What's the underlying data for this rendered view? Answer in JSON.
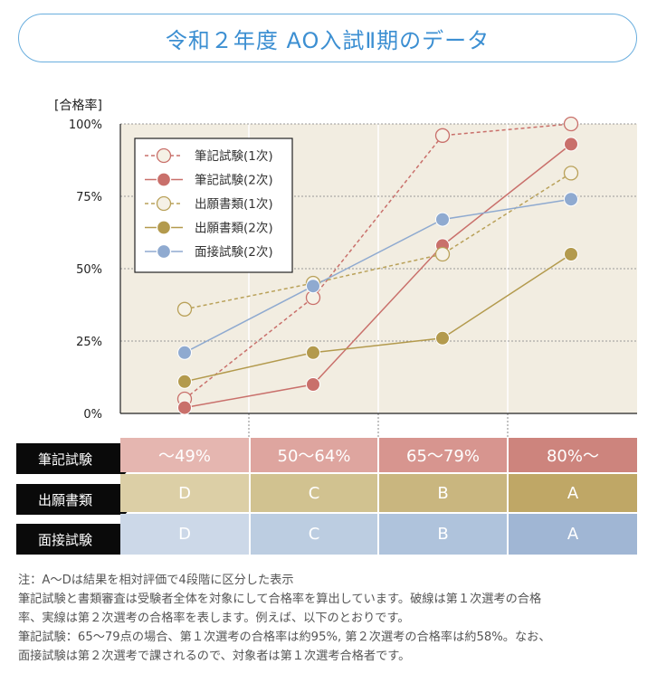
{
  "title": "令和２年度 AO入試Ⅱ期のデータ",
  "chart_data": {
    "type": "line",
    "ylabel": "[合格率]",
    "ylim": [
      0,
      100
    ],
    "yticks": [
      "0%",
      "25%",
      "50%",
      "75%",
      "100%"
    ],
    "ytick_values": [
      0,
      25,
      50,
      75,
      100
    ],
    "categories": [
      "1",
      "2",
      "3",
      "4"
    ],
    "grid": true,
    "legend_position": "top-left",
    "series": [
      {
        "name": "筆記試験(1次)",
        "color": "#c9706b",
        "dashed": true,
        "hollow": true,
        "values": [
          5,
          40,
          96,
          100
        ]
      },
      {
        "name": "筆記試験(2次)",
        "color": "#c9706b",
        "dashed": false,
        "hollow": false,
        "values": [
          2,
          10,
          58,
          93
        ]
      },
      {
        "name": "出願書類(1次)",
        "color": "#b9a159",
        "dashed": true,
        "hollow": true,
        "values": [
          36,
          45,
          55,
          83
        ]
      },
      {
        "name": "出願書類(2次)",
        "color": "#b39a4d",
        "dashed": false,
        "hollow": false,
        "values": [
          11,
          21,
          26,
          55
        ]
      },
      {
        "name": "面接試験(2次)",
        "color": "#8faad0",
        "dashed": false,
        "hollow": false,
        "values": [
          21,
          44,
          67,
          74
        ]
      }
    ]
  },
  "table": {
    "rows": [
      {
        "label": "筆記試験",
        "cells": [
          "～49%",
          "50～64%",
          "65～79%",
          "80%～"
        ],
        "colors": [
          "#e5b6b0",
          "#dea59f",
          "#d7958f",
          "#cd847d"
        ]
      },
      {
        "label": "出願書類",
        "cells": [
          "D",
          "C",
          "B",
          "A"
        ],
        "colors": [
          "#dccfa6",
          "#d1c290",
          "#c9b67f",
          "#bfa766"
        ]
      },
      {
        "label": "面接試験",
        "cells": [
          "D",
          "C",
          "B",
          "A"
        ],
        "colors": [
          "#ccd8e8",
          "#bccde1",
          "#afc3dc",
          "#a0b6d4"
        ]
      }
    ]
  },
  "notes": [
    "注：A～Dは結果を相対評価で4段階に区分した表示",
    "筆記試験と書類審査は受験者全体を対象にして合格率を算出しています。破線は第１次選考の合格",
    "率、実線は第２次選考の合格率を表します。例えば、以下のとおりです。",
    "筆記試験：65～79点の場合、第１次選考の合格率は約95%, 第２次選考の合格率は約58%。なお、",
    "面接試験は第２次選考で課されるので、対象者は第１次選考合格者です。"
  ]
}
